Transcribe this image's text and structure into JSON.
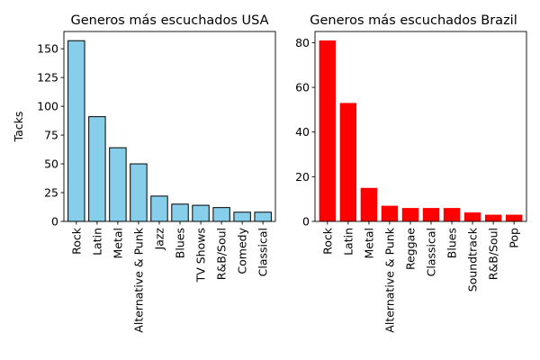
{
  "chart_data": [
    {
      "type": "bar",
      "title": "Generos más escuchados USA",
      "xlabel": "",
      "ylabel": "Tacks",
      "categories": [
        "Rock",
        "Latin",
        "Metal",
        "Alternative & Punk",
        "Jazz",
        "Blues",
        "TV Shows",
        "R&B/Soul",
        "Comedy",
        "Classical"
      ],
      "values": [
        157,
        91,
        64,
        50,
        22,
        15,
        14,
        12,
        8,
        8
      ],
      "ylim": [
        0,
        165
      ],
      "yticks": [
        0,
        25,
        50,
        75,
        100,
        125,
        150
      ],
      "bar_color": "#87ceeb",
      "bar_edge_color": "#000000",
      "grid": false,
      "legend": false
    },
    {
      "type": "bar",
      "title": "Generos más escuchados Brazil",
      "xlabel": "",
      "ylabel": "",
      "categories": [
        "Rock",
        "Latin",
        "Metal",
        "Alternative & Punk",
        "Reggae",
        "Classical",
        "Blues",
        "Soundtrack",
        "R&B/Soul",
        "Pop"
      ],
      "values": [
        81,
        53,
        15,
        7,
        6,
        6,
        6,
        4,
        3,
        3
      ],
      "ylim": [
        0,
        85
      ],
      "yticks": [
        0,
        20,
        40,
        60,
        80
      ],
      "bar_color": "#ff0000",
      "bar_edge_color": "",
      "grid": false,
      "legend": false
    }
  ]
}
